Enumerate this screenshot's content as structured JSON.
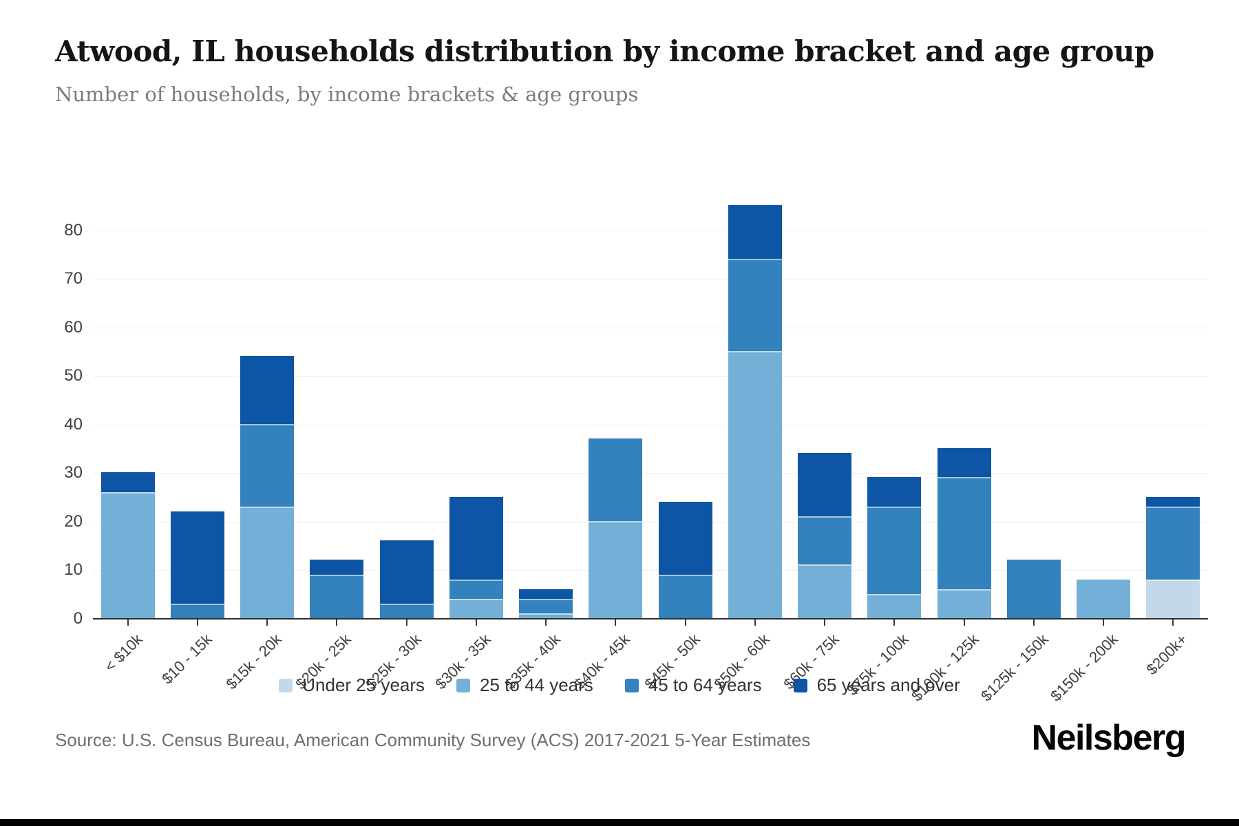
{
  "header": {
    "title": "Atwood, IL households distribution by income bracket and age group",
    "subtitle": "Number of households, by income brackets & age groups"
  },
  "footer": {
    "source": "Source: U.S. Census Bureau, American Community Survey (ACS) 2017-2021 5-Year Estimates",
    "brand": "Neilsberg"
  },
  "chart_data": {
    "type": "bar",
    "stacked": true,
    "title": "Atwood, IL households distribution by income bracket and age group",
    "subtitle": "Number of households, by income brackets & age groups",
    "xlabel": "",
    "ylabel": "Number of households",
    "grid": true,
    "legend_position": "bottom",
    "y_ticks": [
      0,
      10,
      20,
      30,
      40,
      50,
      60,
      70,
      80
    ],
    "y_max": 91,
    "categories": [
      "< $10k",
      "$10 - 15k",
      "$15k - 20k",
      "$20k - 25k",
      "$25k - 30k",
      "$30k - 35k",
      "$35k - 40k",
      "$40k - 45k",
      "$45k - 50k",
      "$50k - 60k",
      "$60k - 75k",
      "$75k - 100k",
      "$100k - 125k",
      "$125k - 150k",
      "$150k - 200k",
      "$200k+"
    ],
    "series": [
      {
        "name": "Under 25 years",
        "color": "#c3d9ea",
        "values": [
          0,
          0,
          0,
          0,
          0,
          0,
          0,
          0,
          0,
          0,
          0,
          0,
          0,
          0,
          0,
          8
        ]
      },
      {
        "name": "25 to 44 years",
        "color": "#73afd6",
        "values": [
          26,
          0,
          23,
          0,
          0,
          4,
          1,
          20,
          0,
          55,
          11,
          5,
          6,
          0,
          8,
          0
        ]
      },
      {
        "name": "45 to 64 years",
        "color": "#3381bd",
        "values": [
          0,
          3,
          17,
          9,
          3,
          4,
          3,
          17,
          9,
          19,
          10,
          18,
          23,
          12,
          0,
          15
        ]
      },
      {
        "name": "65 years and over",
        "color": "#0d55a5",
        "values": [
          4,
          19,
          14,
          3,
          13,
          17,
          2,
          0,
          15,
          11,
          13,
          6,
          6,
          0,
          0,
          2
        ]
      }
    ],
    "colors": {
      "axis_line": "#2d2d2d",
      "gridline": "#ededed",
      "tick_label": "#3f3f3f",
      "legend_text": "#333333",
      "source_text": "#6e6e6e"
    }
  }
}
